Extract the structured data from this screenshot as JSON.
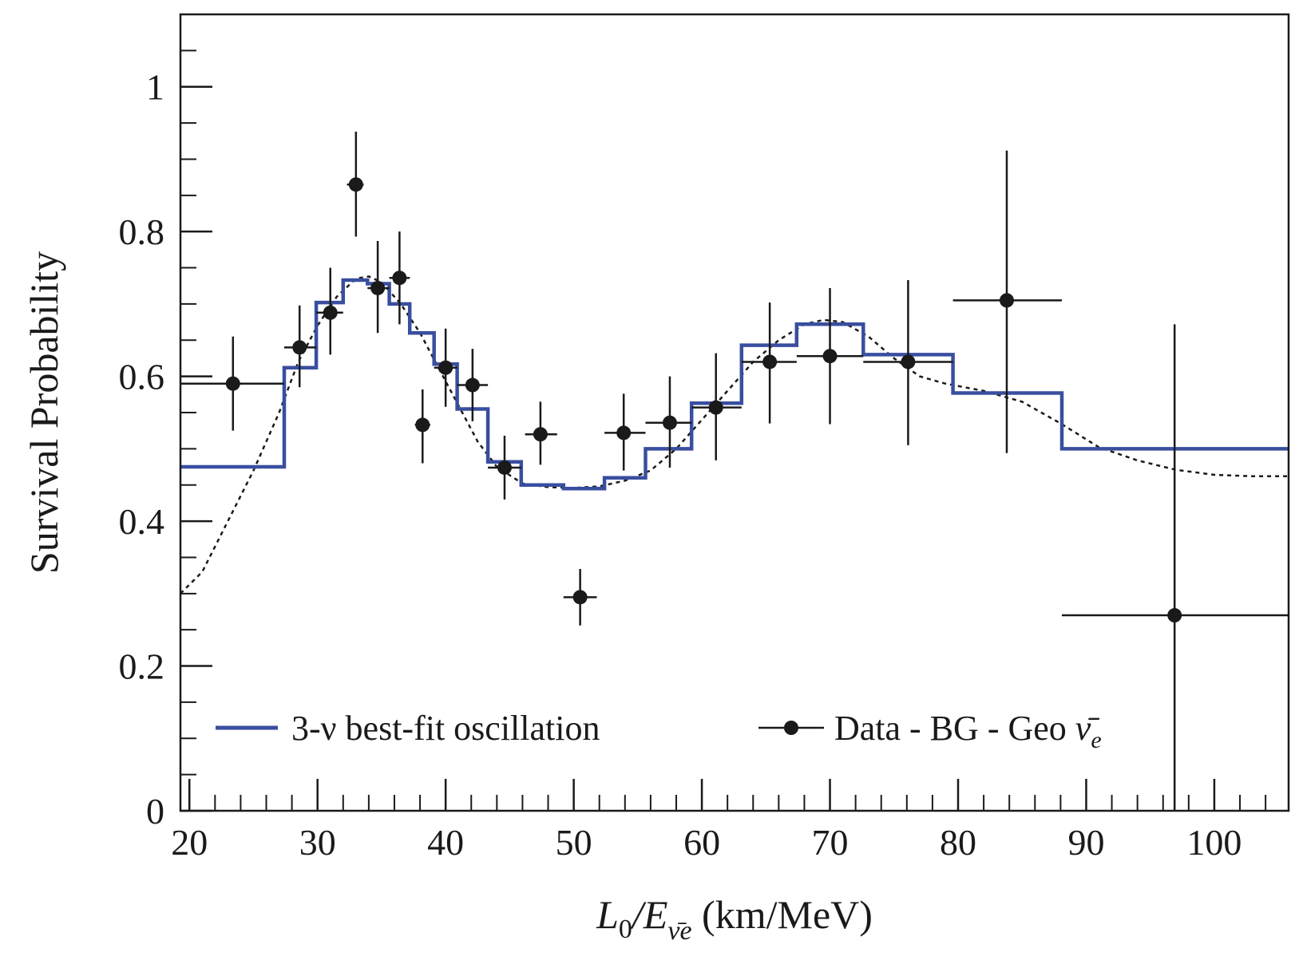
{
  "chart_data": {
    "type": "scatter",
    "xlabel": "L0/Eν̄e (km/MeV)",
    "xlabel_parts": {
      "main": "L",
      "sub0": "0",
      "slash_e": "/E",
      "sub_nu": "ν̄e",
      "unit": " (km/MeV)"
    },
    "ylabel": "Survival Probability",
    "xlim": [
      19.3,
      105.8
    ],
    "ylim": [
      0,
      1.1
    ],
    "x_ticks": [
      20,
      30,
      40,
      50,
      60,
      70,
      80,
      90,
      100
    ],
    "x_tick_labels": [
      "20",
      "30",
      "40",
      "50",
      "60",
      "70",
      "80",
      "90",
      "100"
    ],
    "y_ticks": [
      0,
      0.2,
      0.4,
      0.6,
      0.8,
      1.0
    ],
    "y_tick_labels": [
      "0",
      "0.2",
      "0.4",
      "0.6",
      "0.8",
      "1"
    ],
    "grid": false,
    "legend": {
      "placement": "bottom",
      "entries": [
        {
          "series": "best_fit_step",
          "label_main": "3-ν best-fit oscillation"
        },
        {
          "series": "data",
          "label_main": "Data - BG - Geo ",
          "label_nu": "ν̄",
          "label_sub": "e"
        }
      ]
    },
    "series": [
      {
        "id": "best_fit_step",
        "name": "3-ν best-fit oscillation",
        "style": "step",
        "color": "#3a4ea0",
        "bins": [
          {
            "x0": 19.3,
            "x1": 27.4,
            "y": 0.475
          },
          {
            "x0": 27.4,
            "x1": 29.9,
            "y": 0.612
          },
          {
            "x0": 29.9,
            "x1": 32.0,
            "y": 0.702
          },
          {
            "x0": 32.0,
            "x1": 33.9,
            "y": 0.733
          },
          {
            "x0": 33.9,
            "x1": 35.6,
            "y": 0.728
          },
          {
            "x0": 35.6,
            "x1": 37.2,
            "y": 0.7
          },
          {
            "x0": 37.2,
            "x1": 39.1,
            "y": 0.66
          },
          {
            "x0": 39.1,
            "x1": 40.9,
            "y": 0.617
          },
          {
            "x0": 40.9,
            "x1": 43.3,
            "y": 0.555
          },
          {
            "x0": 43.3,
            "x1": 45.9,
            "y": 0.482
          },
          {
            "x0": 45.9,
            "x1": 49.2,
            "y": 0.45
          },
          {
            "x0": 49.2,
            "x1": 52.4,
            "y": 0.445
          },
          {
            "x0": 52.4,
            "x1": 55.6,
            "y": 0.46
          },
          {
            "x0": 55.6,
            "x1": 59.2,
            "y": 0.5
          },
          {
            "x0": 59.2,
            "x1": 63.1,
            "y": 0.563
          },
          {
            "x0": 63.1,
            "x1": 67.4,
            "y": 0.643
          },
          {
            "x0": 67.4,
            "x1": 72.6,
            "y": 0.672
          },
          {
            "x0": 72.6,
            "x1": 79.6,
            "y": 0.63
          },
          {
            "x0": 79.6,
            "x1": 88.1,
            "y": 0.577
          },
          {
            "x0": 88.1,
            "x1": 105.8,
            "y": 0.5
          }
        ]
      },
      {
        "id": "theory_curve",
        "style": "dotted",
        "color": "#1a1a1a",
        "x": [
          19.3,
          21.0,
          23.0,
          25.0,
          27.0,
          28.5,
          30.0,
          31.5,
          33.0,
          34.0,
          35.0,
          36.5,
          38.0,
          39.5,
          41.0,
          42.5,
          44.0,
          46.0,
          48.0,
          50.0,
          52.0,
          54.0,
          56.0,
          58.0,
          60.0,
          62.0,
          64.0,
          66.0,
          68.0,
          69.5,
          71.0,
          73.0,
          75.0,
          77.0,
          79.0,
          82.0,
          85.0,
          88.0,
          91.0,
          94.0,
          97.0,
          100.0,
          103.0,
          105.8
        ],
        "y": [
          0.3,
          0.33,
          0.4,
          0.47,
          0.55,
          0.62,
          0.67,
          0.71,
          0.735,
          0.738,
          0.73,
          0.7,
          0.66,
          0.61,
          0.56,
          0.51,
          0.475,
          0.452,
          0.447,
          0.446,
          0.448,
          0.456,
          0.47,
          0.5,
          0.54,
          0.58,
          0.62,
          0.65,
          0.672,
          0.678,
          0.675,
          0.655,
          0.625,
          0.6,
          0.59,
          0.58,
          0.565,
          0.535,
          0.502,
          0.484,
          0.471,
          0.464,
          0.462,
          0.462
        ]
      },
      {
        "id": "data",
        "name": "Data - BG - Geo ν̄e",
        "style": "points",
        "color": "#1a1a1a",
        "points": [
          {
            "x": 23.4,
            "y": 0.59,
            "xlo": 19.3,
            "xhi": 27.4,
            "ylo": 0.525,
            "yhi": 0.655
          },
          {
            "x": 28.6,
            "y": 0.64,
            "xlo": 27.4,
            "xhi": 29.9,
            "ylo": 0.585,
            "yhi": 0.698
          },
          {
            "x": 31.0,
            "y": 0.688,
            "xlo": 29.9,
            "xhi": 32.0,
            "ylo": 0.63,
            "yhi": 0.75
          },
          {
            "x": 33.0,
            "y": 0.865,
            "xlo": 32.3,
            "xhi": 33.6,
            "ylo": 0.793,
            "yhi": 0.938
          },
          {
            "x": 34.7,
            "y": 0.722,
            "xlo": 33.9,
            "xhi": 35.6,
            "ylo": 0.66,
            "yhi": 0.787
          },
          {
            "x": 36.4,
            "y": 0.736,
            "xlo": 35.6,
            "xhi": 37.2,
            "ylo": 0.672,
            "yhi": 0.8
          },
          {
            "x": 38.2,
            "y": 0.533,
            "xlo": 37.6,
            "xhi": 38.8,
            "ylo": 0.48,
            "yhi": 0.582
          },
          {
            "x": 40.0,
            "y": 0.612,
            "xlo": 39.1,
            "xhi": 40.9,
            "ylo": 0.558,
            "yhi": 0.666
          },
          {
            "x": 42.1,
            "y": 0.588,
            "xlo": 40.9,
            "xhi": 43.3,
            "ylo": 0.538,
            "yhi": 0.638
          },
          {
            "x": 44.6,
            "y": 0.474,
            "xlo": 43.3,
            "xhi": 45.9,
            "ylo": 0.43,
            "yhi": 0.518
          },
          {
            "x": 47.4,
            "y": 0.52,
            "xlo": 46.2,
            "xhi": 48.7,
            "ylo": 0.478,
            "yhi": 0.565
          },
          {
            "x": 50.5,
            "y": 0.295,
            "xlo": 49.2,
            "xhi": 51.8,
            "ylo": 0.256,
            "yhi": 0.334
          },
          {
            "x": 53.9,
            "y": 0.522,
            "xlo": 52.4,
            "xhi": 55.6,
            "ylo": 0.47,
            "yhi": 0.576
          },
          {
            "x": 57.5,
            "y": 0.536,
            "xlo": 55.6,
            "xhi": 59.2,
            "ylo": 0.474,
            "yhi": 0.6
          },
          {
            "x": 61.1,
            "y": 0.557,
            "xlo": 59.2,
            "xhi": 63.1,
            "ylo": 0.484,
            "yhi": 0.632
          },
          {
            "x": 65.3,
            "y": 0.62,
            "xlo": 63.1,
            "xhi": 67.4,
            "ylo": 0.535,
            "yhi": 0.702
          },
          {
            "x": 70.0,
            "y": 0.628,
            "xlo": 67.4,
            "xhi": 72.6,
            "ylo": 0.534,
            "yhi": 0.722
          },
          {
            "x": 76.1,
            "y": 0.62,
            "xlo": 72.6,
            "xhi": 79.6,
            "ylo": 0.505,
            "yhi": 0.733
          },
          {
            "x": 83.8,
            "y": 0.705,
            "xlo": 79.6,
            "xhi": 88.1,
            "ylo": 0.494,
            "yhi": 0.912
          },
          {
            "x": 96.9,
            "y": 0.27,
            "xlo": 88.1,
            "xhi": 105.8,
            "ylo": 0.0,
            "yhi": 0.672
          }
        ]
      }
    ]
  }
}
